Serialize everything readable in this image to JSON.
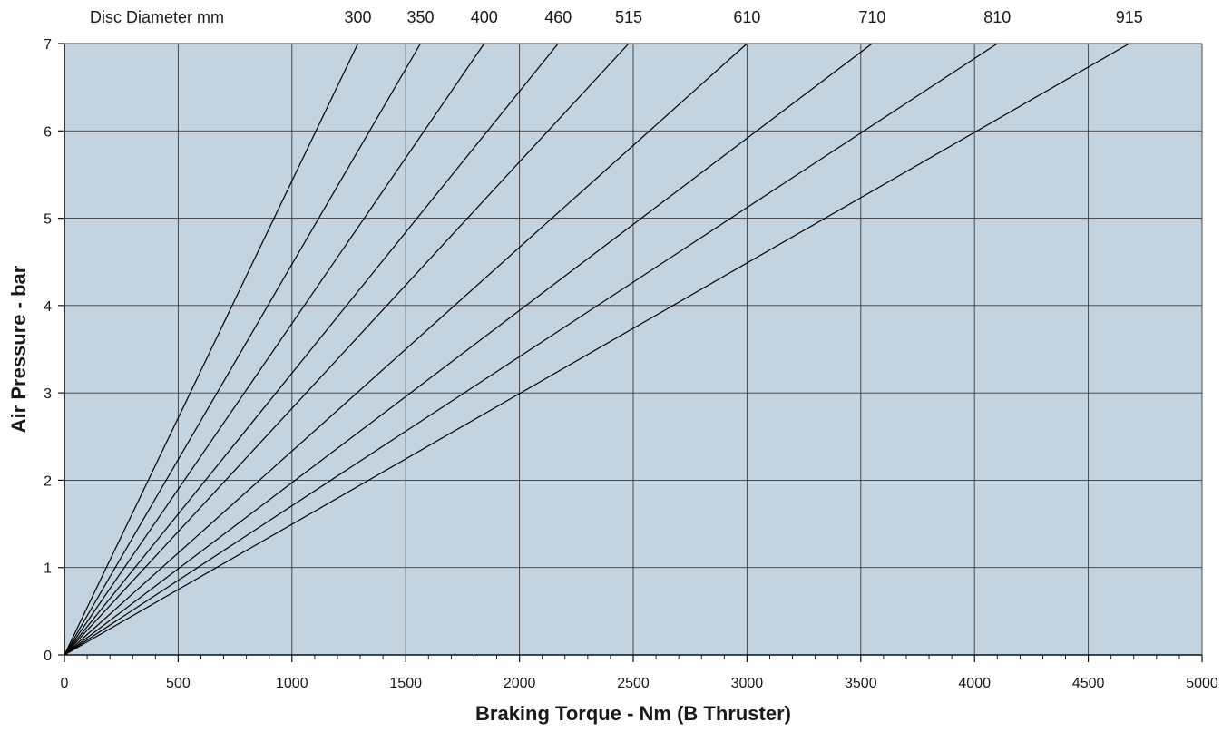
{
  "chart_data": {
    "type": "line",
    "title": "",
    "header_label": "Disc Diameter mm",
    "xlabel": "Braking Torque - Nm (B Thruster)",
    "ylabel": "Air Pressure - bar",
    "xlim": [
      0,
      5000
    ],
    "ylim": [
      0,
      7
    ],
    "x_ticks": [
      "0",
      "500",
      "1000",
      "1500",
      "2000",
      "2500",
      "3000",
      "3500",
      "4000",
      "4500",
      "5000"
    ],
    "y_ticks": [
      "0",
      "1",
      "2",
      "3",
      "4",
      "5",
      "6",
      "7"
    ],
    "x_minor_step": 100,
    "grid": true,
    "legend": "none",
    "plot_background": "#c3d3df",
    "line_color": "#000000",
    "series": [
      {
        "name": "300",
        "x": [
          0,
          1290
        ],
        "y": [
          0,
          7
        ]
      },
      {
        "name": "350",
        "x": [
          0,
          1565
        ],
        "y": [
          0,
          7
        ]
      },
      {
        "name": "400",
        "x": [
          0,
          1845
        ],
        "y": [
          0,
          7
        ]
      },
      {
        "name": "460",
        "x": [
          0,
          2170
        ],
        "y": [
          0,
          7
        ]
      },
      {
        "name": "515",
        "x": [
          0,
          2480
        ],
        "y": [
          0,
          7
        ]
      },
      {
        "name": "610",
        "x": [
          0,
          3000
        ],
        "y": [
          0,
          7
        ]
      },
      {
        "name": "710",
        "x": [
          0,
          3550
        ],
        "y": [
          0,
          7
        ]
      },
      {
        "name": "810",
        "x": [
          0,
          4100
        ],
        "y": [
          0,
          7
        ]
      },
      {
        "name": "915",
        "x": [
          0,
          4680
        ],
        "y": [
          0,
          7
        ]
      }
    ]
  }
}
